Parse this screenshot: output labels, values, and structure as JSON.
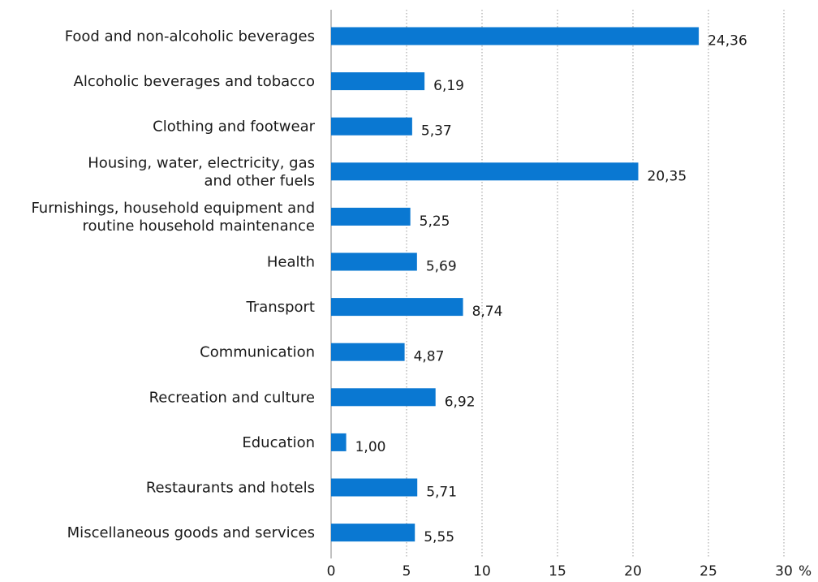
{
  "chart_data": {
    "type": "bar",
    "orientation": "horizontal",
    "categories": [
      [
        "Food and non-alcoholic beverages"
      ],
      [
        "Alcoholic beverages and tobacco"
      ],
      [
        "Clothing and footwear"
      ],
      [
        "Housing, water, electricity, gas",
        "and other fuels"
      ],
      [
        "Furnishings, household equipment and",
        "routine household maintenance"
      ],
      [
        "Health"
      ],
      [
        "Transport"
      ],
      [
        "Communication"
      ],
      [
        "Recreation and culture"
      ],
      [
        "Education"
      ],
      [
        "Restaurants and hotels"
      ],
      [
        "Miscellaneous goods and services"
      ]
    ],
    "values": [
      24.36,
      6.19,
      5.37,
      20.35,
      5.25,
      5.69,
      8.74,
      4.87,
      6.92,
      1.0,
      5.71,
      5.55
    ],
    "value_labels": [
      "24,36",
      "6,19",
      "5,37",
      "20,35",
      "5,25",
      "5,69",
      "8,74",
      "4,87",
      "6,92",
      "1,00",
      "5,71",
      "5,55"
    ],
    "x_ticks": [
      0,
      5,
      10,
      15,
      20,
      25,
      30
    ],
    "x_tick_labels": [
      "0",
      "5",
      "10",
      "15",
      "20",
      "25",
      "30"
    ],
    "xlim": [
      0,
      30
    ],
    "unit": "%",
    "grid": "vertical-dotted",
    "bar_color": "#0a78d2",
    "title": "",
    "xlabel": "",
    "ylabel": ""
  }
}
